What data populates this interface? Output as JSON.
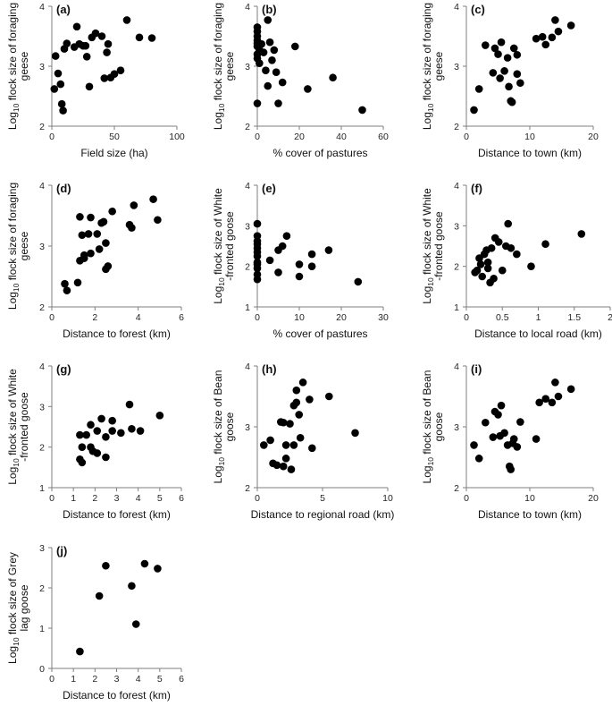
{
  "figure": {
    "background": "#ffffff",
    "marker_color": "#000000",
    "axis_color": "#7f7f7f"
  },
  "chart_data": [
    {
      "panel": "(a)",
      "type": "scatter",
      "xlabel": "Field size (ha)",
      "ylabel": [
        "Log",
        "10",
        " flock size of foraging",
        "geese"
      ],
      "xlim": [
        0,
        100
      ],
      "ylim": [
        2,
        4
      ],
      "xticks": [
        "0",
        "50",
        "100"
      ],
      "yticks": [
        "2",
        "3",
        "4"
      ],
      "x": [
        2,
        3,
        5,
        7,
        8,
        9,
        10,
        12,
        18,
        20,
        22,
        25,
        27,
        28,
        30,
        32,
        35,
        40,
        42,
        44,
        45,
        47,
        50,
        55,
        60,
        70,
        80
      ],
      "y": [
        2.62,
        3.17,
        2.88,
        2.7,
        2.37,
        2.26,
        3.29,
        3.38,
        3.32,
        3.66,
        3.37,
        3.34,
        3.34,
        3.16,
        2.66,
        3.48,
        3.55,
        3.5,
        2.8,
        3.23,
        3.37,
        2.81,
        2.87,
        2.93,
        3.77,
        3.48,
        3.47
      ]
    },
    {
      "panel": "(b)",
      "type": "scatter",
      "xlabel": "% cover of pastures",
      "ylabel": [
        "Log",
        "10",
        " flock size of foraging",
        "geese"
      ],
      "xlim": [
        0,
        60
      ],
      "ylim": [
        2,
        4
      ],
      "xticks": [
        "0",
        "20",
        "40",
        "60"
      ],
      "yticks": [
        "2",
        "3",
        "4"
      ],
      "x": [
        0,
        0,
        0,
        0,
        0,
        0,
        0,
        0,
        0,
        1,
        1,
        2,
        3,
        4,
        5,
        5,
        6,
        7,
        8,
        9,
        10,
        12,
        18,
        24,
        36,
        50
      ],
      "y": [
        3.65,
        3.58,
        3.5,
        3.43,
        3.38,
        3.33,
        3.2,
        3.13,
        2.38,
        3.27,
        3.05,
        3.37,
        3.23,
        2.93,
        3.77,
        2.67,
        3.4,
        3.1,
        3.27,
        2.9,
        2.38,
        2.73,
        3.33,
        2.62,
        2.81,
        2.27
      ]
    },
    {
      "panel": "(c)",
      "type": "scatter",
      "xlabel": "Distance to town (km)",
      "ylabel": [
        "Log",
        "10",
        " flock size of foraging",
        "geese"
      ],
      "xlim": [
        0,
        20
      ],
      "ylim": [
        2,
        4
      ],
      "xticks": [
        "0",
        "10",
        "20"
      ],
      "yticks": [
        "2",
        "3",
        "4"
      ],
      "x": [
        1.2,
        2,
        3,
        4.2,
        4.5,
        5,
        5.3,
        5.5,
        6,
        6.5,
        6.7,
        7,
        7.2,
        7.5,
        8,
        8,
        8.5,
        11,
        12,
        12.5,
        13.5,
        14,
        14.5,
        16.5
      ],
      "y": [
        2.27,
        2.62,
        3.35,
        2.89,
        3.3,
        3.2,
        2.8,
        3.4,
        2.92,
        3.14,
        2.66,
        2.42,
        2.4,
        3.3,
        2.87,
        3.19,
        2.72,
        3.46,
        3.49,
        3.36,
        3.48,
        3.77,
        3.58,
        3.68
      ]
    },
    {
      "panel": "(d)",
      "type": "scatter",
      "xlabel": "Distance to forest (km)",
      "ylabel": [
        "Log",
        "10",
        " flock size of foraging",
        "geese"
      ],
      "xlim": [
        0,
        6
      ],
      "ylim": [
        2,
        4
      ],
      "xticks": [
        "0",
        "2",
        "4",
        "6"
      ],
      "yticks": [
        "2",
        "3",
        "4"
      ],
      "x": [
        0.6,
        0.7,
        1.2,
        1.3,
        1.3,
        1.4,
        1.5,
        1.5,
        1.7,
        1.8,
        1.8,
        2.1,
        2.2,
        2.3,
        2.4,
        2.5,
        2.5,
        2.6,
        2.8,
        3.6,
        3.7,
        3.8,
        4.7,
        4.9
      ],
      "y": [
        2.38,
        2.27,
        2.4,
        2.76,
        3.48,
        3.18,
        2.8,
        2.85,
        3.2,
        3.47,
        2.88,
        3.2,
        2.95,
        3.38,
        3.4,
        3.05,
        2.62,
        2.67,
        3.57,
        3.35,
        3.3,
        3.67,
        3.77,
        3.43
      ]
    },
    {
      "panel": "(e)",
      "type": "scatter",
      "xlabel": "% cover of pastures",
      "ylabel": [
        "Log",
        "10",
        " flock size of White",
        "-fronted goose"
      ],
      "xlim": [
        0,
        30
      ],
      "ylim": [
        1,
        4
      ],
      "xticks": [
        "0",
        "10",
        "20",
        "30"
      ],
      "yticks": [
        "1",
        "2",
        "3",
        "4"
      ],
      "x": [
        0,
        0,
        0,
        0,
        0,
        0,
        0,
        0,
        0,
        0,
        0,
        0,
        3,
        5,
        5,
        6,
        7,
        10,
        10,
        13,
        13,
        17,
        24
      ],
      "y": [
        3.05,
        2.75,
        2.62,
        2.55,
        2.45,
        2.35,
        2.25,
        2.1,
        2.05,
        1.95,
        1.8,
        1.68,
        2.15,
        2.4,
        1.85,
        2.5,
        2.75,
        2.05,
        1.75,
        2.3,
        2.0,
        2.4,
        1.62
      ]
    },
    {
      "panel": "(f)",
      "type": "scatter",
      "xlabel": "Distance to local road (km)",
      "ylabel": [
        "Log",
        "10",
        " flock size of White",
        "-fronted goose"
      ],
      "xlim": [
        0,
        2
      ],
      "ylim": [
        1,
        4
      ],
      "xticks": [
        "0",
        "0.5",
        "1",
        "1.5",
        "2"
      ],
      "yticks": [
        "1",
        "2",
        "3",
        "4"
      ],
      "x": [
        0.12,
        0.15,
        0.18,
        0.2,
        0.22,
        0.25,
        0.28,
        0.3,
        0.3,
        0.33,
        0.35,
        0.38,
        0.4,
        0.45,
        0.5,
        0.55,
        0.58,
        0.62,
        0.7,
        0.9,
        1.1,
        1.6
      ],
      "y": [
        1.85,
        1.9,
        2.2,
        2.05,
        1.75,
        2.3,
        2.4,
        2.1,
        1.95,
        1.6,
        2.45,
        1.7,
        2.7,
        2.6,
        1.9,
        2.5,
        3.05,
        2.45,
        2.3,
        2.0,
        2.55,
        2.8
      ]
    },
    {
      "panel": "(g)",
      "type": "scatter",
      "xlabel": "Distance to forest (km)",
      "ylabel": [
        "Log",
        "10",
        " flock size of White",
        "-fronted goose"
      ],
      "xlim": [
        0,
        6
      ],
      "ylim": [
        1,
        4
      ],
      "xticks": [
        "0",
        "1",
        "2",
        "3",
        "4",
        "5",
        "6"
      ],
      "yticks": [
        "1",
        "2",
        "3",
        "4"
      ],
      "x": [
        1.3,
        1.3,
        1.4,
        1.4,
        1.6,
        1.8,
        1.8,
        1.9,
        2.1,
        2.1,
        2.3,
        2.5,
        2.5,
        2.8,
        2.8,
        3.2,
        3.6,
        3.7,
        4.1,
        5.0
      ],
      "y": [
        2.3,
        1.7,
        2.0,
        1.62,
        2.3,
        2.55,
        2.0,
        1.9,
        2.4,
        1.85,
        2.7,
        2.25,
        1.75,
        2.65,
        2.4,
        2.35,
        3.05,
        2.45,
        2.4,
        2.78
      ]
    },
    {
      "panel": "(h)",
      "type": "scatter",
      "xlabel": "Distance to regional road (km)",
      "ylabel": [
        "Log",
        "10",
        " flock size of Bean",
        "goose"
      ],
      "xlim": [
        0,
        10
      ],
      "ylim": [
        2,
        4
      ],
      "xticks": [
        "0",
        "5",
        "10"
      ],
      "yticks": [
        "2",
        "3",
        "4"
      ],
      "x": [
        0.5,
        1,
        1.2,
        1.5,
        1.8,
        2,
        2,
        2.2,
        2.2,
        2.5,
        2.6,
        2.8,
        2.8,
        3,
        3,
        3.2,
        3.3,
        3.5,
        4,
        4.2,
        5.5,
        7.5
      ],
      "y": [
        2.7,
        2.78,
        2.4,
        2.37,
        3.08,
        3.07,
        2.35,
        2.7,
        2.48,
        3.05,
        2.3,
        3.35,
        2.7,
        3.4,
        3.6,
        3.2,
        2.82,
        3.73,
        3.45,
        2.65,
        3.5,
        2.9
      ]
    },
    {
      "panel": "(i)",
      "type": "scatter",
      "xlabel": "Distance to town (km)",
      "ylabel": [
        "Log",
        "10",
        " flock size of Bean",
        "goose"
      ],
      "xlim": [
        0,
        20
      ],
      "ylim": [
        2,
        4
      ],
      "xticks": [
        "0",
        "10",
        "20"
      ],
      "yticks": [
        "2",
        "3",
        "4"
      ],
      "x": [
        1.2,
        2,
        3,
        4.2,
        4.5,
        5,
        5.3,
        5.5,
        6,
        6.5,
        6.8,
        7,
        7.3,
        7.5,
        8,
        8.5,
        11,
        11.5,
        12.5,
        13.5,
        14,
        14.5,
        16.5
      ],
      "y": [
        2.7,
        2.48,
        3.07,
        2.83,
        3.25,
        3.2,
        2.85,
        3.35,
        2.9,
        2.7,
        2.35,
        2.3,
        2.73,
        2.8,
        2.67,
        3.08,
        2.8,
        3.4,
        3.46,
        3.4,
        3.73,
        3.5,
        3.62
      ]
    },
    {
      "panel": "(j)",
      "type": "scatter",
      "xlabel": "Distance to forest (km)",
      "ylabel": [
        "Log",
        "10",
        " flock size of Grey",
        "lag goose"
      ],
      "xlim": [
        0,
        6
      ],
      "ylim": [
        0,
        3
      ],
      "xticks": [
        "0",
        "1",
        "2",
        "3",
        "4",
        "5",
        "6"
      ],
      "yticks": [
        "0",
        "1",
        "2",
        "3"
      ],
      "x": [
        1.3,
        2.2,
        2.5,
        3.7,
        3.9,
        4.3,
        4.9
      ],
      "y": [
        0.42,
        1.8,
        2.55,
        2.05,
        1.1,
        2.6,
        2.48
      ]
    }
  ]
}
